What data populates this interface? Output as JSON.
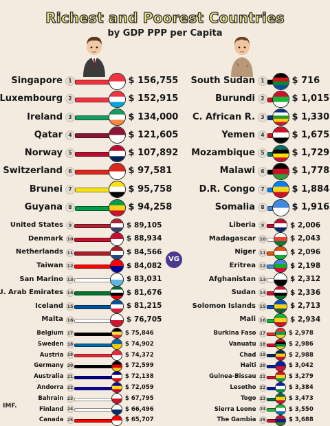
{
  "title": "Richest and Poorest Countries",
  "subtitle": "by GDP PPP per Capita",
  "source": "IMF.",
  "logo_text": "VG",
  "chart_data": [
    {
      "type": "table",
      "currency": "$",
      "rows": [
        {
          "rank": 1,
          "country": "Singapore",
          "value": 156755,
          "label": "$ 156,755",
          "flag": [
            "#ef3340",
            "#ffffff"
          ]
        },
        {
          "rank": 2,
          "country": "Luxembourg",
          "value": 152915,
          "label": "$ 152,915",
          "flag": [
            "#ef3340",
            "#ffffff",
            "#00a3e0"
          ]
        },
        {
          "rank": 3,
          "country": "Ireland",
          "value": 134000,
          "label": "$ 134,000",
          "flag": [
            "#169b62",
            "#ffffff",
            "#ff883e"
          ]
        },
        {
          "rank": 4,
          "country": "Qatar",
          "value": 121605,
          "label": "$ 121,605",
          "flag": [
            "#8a1538",
            "#ffffff"
          ]
        },
        {
          "rank": 5,
          "country": "Norway",
          "value": 107892,
          "label": "$ 107,892",
          "flag": [
            "#ba0c2f",
            "#ffffff",
            "#00205b"
          ]
        },
        {
          "rank": 6,
          "country": "Switzerland",
          "value": 97581,
          "label": "$ 97,581",
          "flag": [
            "#da291c",
            "#ffffff"
          ]
        },
        {
          "rank": 7,
          "country": "Brunei",
          "value": 95758,
          "label": "$ 95,758",
          "flag": [
            "#f7e017",
            "#ffffff",
            "#000000"
          ]
        },
        {
          "rank": 8,
          "country": "Guyana",
          "value": 94258,
          "label": "$ 94,258",
          "flag": [
            "#009e49",
            "#fcd116",
            "#ce1126"
          ]
        },
        {
          "rank": 9,
          "country": "United States",
          "value": 89105,
          "label": "$ 89,105",
          "flag": [
            "#b22234",
            "#ffffff",
            "#3c3b6e"
          ]
        },
        {
          "rank": 10,
          "country": "Denmark",
          "value": 88934,
          "label": "$ 88,934",
          "flag": [
            "#c8102e",
            "#ffffff"
          ]
        },
        {
          "rank": 11,
          "country": "Netherlands",
          "value": 84566,
          "label": "$ 84,566",
          "flag": [
            "#ae1c28",
            "#ffffff",
            "#21468b"
          ]
        },
        {
          "rank": 12,
          "country": "Taiwan",
          "value": 84082,
          "label": "$ 84,082",
          "flag": [
            "#fe0000",
            "#000095"
          ]
        },
        {
          "rank": 13,
          "country": "San Marino",
          "value": 83031,
          "label": "$ 83,031",
          "flag": [
            "#ffffff",
            "#5eb6e4"
          ]
        },
        {
          "rank": 14,
          "country": "U. Arab Emirates",
          "value": 81676,
          "label": "$ 81,676",
          "flag": [
            "#00732f",
            "#ffffff",
            "#000000",
            "#ff0000"
          ]
        },
        {
          "rank": 15,
          "country": "Iceland",
          "value": 81215,
          "label": "$ 81,215",
          "flag": [
            "#02529c",
            "#ffffff",
            "#dc1e35"
          ]
        },
        {
          "rank": 16,
          "country": "Malta",
          "value": 76705,
          "label": "$ 76,705",
          "flag": [
            "#ffffff",
            "#cf142b"
          ]
        },
        {
          "rank": 17,
          "country": "Belgium",
          "value": 75846,
          "label": "$ 75,846",
          "flag": [
            "#000000",
            "#fae042",
            "#ed2939"
          ]
        },
        {
          "rank": 18,
          "country": "Sweden",
          "value": 74902,
          "label": "$ 74,902",
          "flag": [
            "#006aa7",
            "#fecc00"
          ]
        },
        {
          "rank": 19,
          "country": "Austria",
          "value": 74372,
          "label": "$ 74,372",
          "flag": [
            "#ed2939",
            "#ffffff"
          ]
        },
        {
          "rank": 20,
          "country": "Germany",
          "value": 72599,
          "label": "$ 72,599",
          "flag": [
            "#000000",
            "#dd0000",
            "#ffce00"
          ]
        },
        {
          "rank": 21,
          "country": "Australia",
          "value": 72138,
          "label": "$ 72,138",
          "flag": [
            "#00008b",
            "#ffffff",
            "#ff0000"
          ]
        },
        {
          "rank": 22,
          "country": "Andorra",
          "value": 72059,
          "label": "$ 72,059",
          "flag": [
            "#10069f",
            "#fedd00",
            "#d50032"
          ]
        },
        {
          "rank": 23,
          "country": "Bahrain",
          "value": 67795,
          "label": "$ 67,795",
          "flag": [
            "#ffffff",
            "#ce1126"
          ]
        },
        {
          "rank": 24,
          "country": "Finland",
          "value": 66496,
          "label": "$ 66,496",
          "flag": [
            "#ffffff",
            "#002f6c"
          ]
        },
        {
          "rank": 25,
          "country": "Canada",
          "value": 65707,
          "label": "$ 65,707",
          "flag": [
            "#ff0000",
            "#ffffff"
          ]
        }
      ]
    },
    {
      "type": "table",
      "currency": "$",
      "rows": [
        {
          "rank": 1,
          "country": "South Sudan",
          "value": 716,
          "label": "$ 716",
          "flag": [
            "#000000",
            "#da121a",
            "#078930",
            "#0f47af"
          ]
        },
        {
          "rank": 2,
          "country": "Burundi",
          "value": 1015,
          "label": "$ 1,015",
          "flag": [
            "#ce1126",
            "#1eb53a",
            "#ffffff"
          ]
        },
        {
          "rank": 3,
          "country": "C. African R.",
          "value": 1330,
          "label": "$ 1,330",
          "flag": [
            "#003082",
            "#ffffff",
            "#289728",
            "#ffce00",
            "#d21034"
          ]
        },
        {
          "rank": 4,
          "country": "Yemen",
          "value": 1675,
          "label": "$ 1,675",
          "flag": [
            "#ce1126",
            "#ffffff",
            "#000000"
          ]
        },
        {
          "rank": 5,
          "country": "Mozambique",
          "value": 1729,
          "label": "$ 1,729",
          "flag": [
            "#007168",
            "#000000",
            "#fce100",
            "#d21034"
          ]
        },
        {
          "rank": 6,
          "country": "Malawi",
          "value": 1778,
          "label": "$ 1,778",
          "flag": [
            "#000000",
            "#ce1126",
            "#339e35"
          ]
        },
        {
          "rank": 7,
          "country": "D.R. Congo",
          "value": 1884,
          "label": "$ 1,884",
          "flag": [
            "#007fff",
            "#f7d618",
            "#ce1021"
          ]
        },
        {
          "rank": 8,
          "country": "Somalia",
          "value": 1916,
          "label": "$ 1,916",
          "flag": [
            "#4189dd",
            "#ffffff"
          ]
        },
        {
          "rank": 9,
          "country": "Liberia",
          "value": 2006,
          "label": "$ 2,006",
          "flag": [
            "#bf0a30",
            "#ffffff",
            "#002868"
          ]
        },
        {
          "rank": 10,
          "country": "Madagascar",
          "value": 2043,
          "label": "$ 2,043",
          "flag": [
            "#ffffff",
            "#fc3d32",
            "#007e3a"
          ]
        },
        {
          "rank": 11,
          "country": "Niger",
          "value": 2096,
          "label": "$ 2,096",
          "flag": [
            "#e05206",
            "#ffffff",
            "#0db02b"
          ]
        },
        {
          "rank": 12,
          "country": "Eritrea",
          "value": 2198,
          "label": "$ 2,198",
          "flag": [
            "#4189dd",
            "#12ad2b",
            "#ea0437"
          ]
        },
        {
          "rank": 13,
          "country": "Afghanistan",
          "value": 2312,
          "label": "$ 2,312",
          "flag": [
            "#ffffff",
            "#000000"
          ]
        },
        {
          "rank": 14,
          "country": "Sudan",
          "value": 2336,
          "label": "$ 2,336",
          "flag": [
            "#d21034",
            "#ffffff",
            "#000000",
            "#007229"
          ]
        },
        {
          "rank": 15,
          "country": "Solomon Islands",
          "value": 2713,
          "label": "$ 2,713",
          "flag": [
            "#0051ba",
            "#fcd116",
            "#215b33"
          ]
        },
        {
          "rank": 16,
          "country": "Mali",
          "value": 2934,
          "label": "$ 2,934",
          "flag": [
            "#14b53a",
            "#fcd116",
            "#ce1126"
          ]
        },
        {
          "rank": 17,
          "country": "Burkina Faso",
          "value": 2978,
          "label": "$ 2,978",
          "flag": [
            "#ef2b2d",
            "#009e49",
            "#fcd116"
          ]
        },
        {
          "rank": 18,
          "country": "Vanuatu",
          "value": 2986,
          "label": "$ 2,986",
          "flag": [
            "#d21034",
            "#000000",
            "#009543",
            "#fdce12"
          ]
        },
        {
          "rank": 19,
          "country": "Chad",
          "value": 2988,
          "label": "$ 2,988",
          "flag": [
            "#002664",
            "#fecb00",
            "#c60c30"
          ]
        },
        {
          "rank": 20,
          "country": "Haiti",
          "value": 3042,
          "label": "$ 3,042",
          "flag": [
            "#00209f",
            "#d21034"
          ]
        },
        {
          "rank": 21,
          "country": "Guinea-Bissau",
          "value": 3279,
          "label": "$ 3,279",
          "flag": [
            "#ce1126",
            "#fcd116",
            "#009e49"
          ]
        },
        {
          "rank": 22,
          "country": "Lesotho",
          "value": 3384,
          "label": "$ 3,384",
          "flag": [
            "#00209f",
            "#ffffff",
            "#009543"
          ]
        },
        {
          "rank": 23,
          "country": "Togo",
          "value": 3473,
          "label": "$ 3,473",
          "flag": [
            "#006a4e",
            "#ffce00",
            "#d21034"
          ]
        },
        {
          "rank": 24,
          "country": "Sierra Leone",
          "value": 3550,
          "label": "$ 3,550",
          "flag": [
            "#1eb53a",
            "#ffffff",
            "#0072c6"
          ]
        },
        {
          "rank": 25,
          "country": "The Gambia",
          "value": 3688,
          "label": "$ 3,688",
          "flag": [
            "#ce1126",
            "#0c1c8c",
            "#3a7728"
          ]
        }
      ]
    }
  ]
}
